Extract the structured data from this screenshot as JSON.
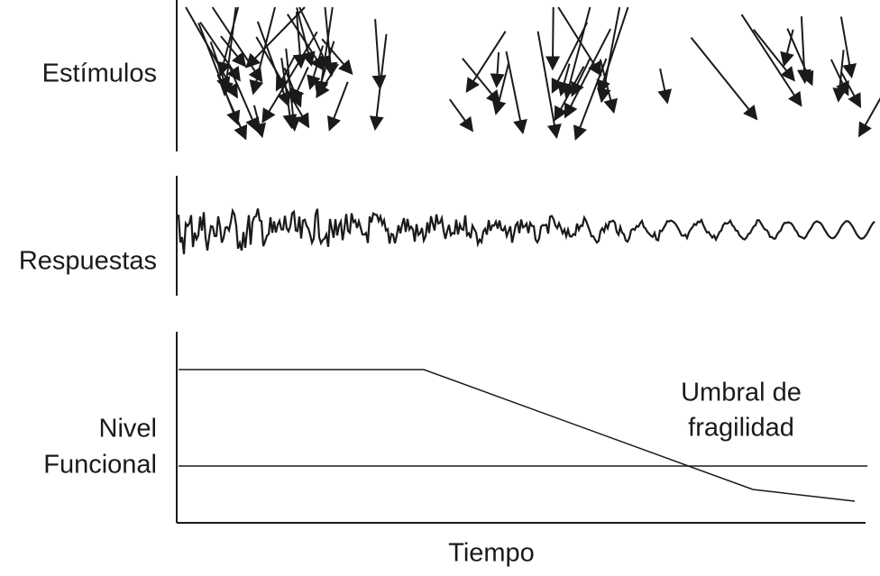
{
  "labels": {
    "stimuli": "Estímulos",
    "responses": "Respuestas",
    "functional_level": [
      "Nivel",
      "Funcional"
    ],
    "frailty_threshold": [
      "Umbral de",
      "fragilidad"
    ],
    "time": "Tiempo"
  }
}
